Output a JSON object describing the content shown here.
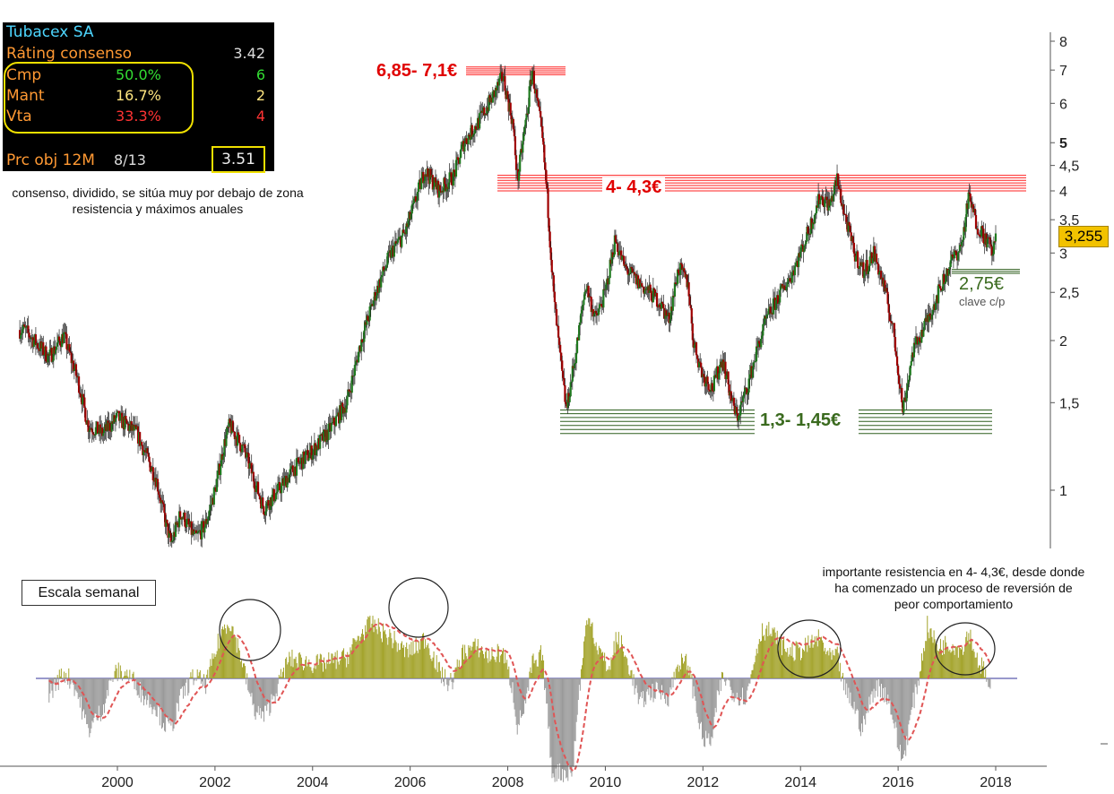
{
  "panel": {
    "title": "Tubacex SA",
    "rating_label": "Ráting consenso",
    "rating_value": "3.42",
    "rows": [
      {
        "label": "Cmp",
        "pct": "50.0%",
        "count": "6",
        "color": "#33dd33"
      },
      {
        "label": "Mant",
        "pct": "16.7%",
        "count": "2",
        "color": "#ffe680"
      },
      {
        "label": "Vta",
        "pct": "33.3%",
        "count": "4",
        "color": "#ff3333"
      }
    ],
    "target_label": "Prc obj 12M",
    "target_date": "8/13",
    "target_value": "3.51"
  },
  "captions": {
    "consensus": "consenso, dividido, se sitúa muy por debajo de zona resistencia y máximos anuales",
    "resistance": "importante resistencia en 4- 4,3€, desde donde ha comenzado un proceso de reversión de peor comportamiento",
    "scale": "Escala semanal"
  },
  "zones": {
    "top": "6,85- 7,1€",
    "mid": "4- 4,3€",
    "low": "1,3- 1,45€",
    "key": "2,75€",
    "key_sub": "clave c/p"
  },
  "last_price": "3,255",
  "chart_data": {
    "type": "candlestick",
    "scale": "log",
    "x_tick_labels": [
      "2000",
      "2002",
      "2004",
      "2006",
      "2008",
      "2010",
      "2012",
      "2014",
      "2016",
      "2018"
    ],
    "y_tick_labels": [
      "8",
      "7",
      "6",
      "5",
      "4,5",
      "4",
      "3,5",
      "3",
      "2,5",
      "2",
      "1,5",
      "1"
    ],
    "y_ticks": [
      8,
      7,
      6,
      5,
      4.5,
      4,
      3.5,
      3,
      2.5,
      2,
      1.5,
      1
    ],
    "ylim": [
      0.72,
      8.2
    ],
    "xlim": [
      1998.0,
      2018.8
    ],
    "price_path": [
      [
        1998.1,
        2.1
      ],
      [
        1998.6,
        1.85
      ],
      [
        1998.9,
        2.05
      ],
      [
        1999.2,
        1.65
      ],
      [
        1999.4,
        1.35
      ],
      [
        1999.7,
        1.3
      ],
      [
        2000.0,
        1.4
      ],
      [
        2000.4,
        1.3
      ],
      [
        2000.8,
        1.05
      ],
      [
        2001.0,
        0.85
      ],
      [
        2001.1,
        0.78
      ],
      [
        2001.3,
        0.9
      ],
      [
        2001.6,
        0.8
      ],
      [
        2001.8,
        0.85
      ],
      [
        2002.0,
        1.0
      ],
      [
        2002.2,
        1.25
      ],
      [
        2002.3,
        1.35
      ],
      [
        2002.6,
        1.2
      ],
      [
        2002.8,
        1.05
      ],
      [
        2003.0,
        0.92
      ],
      [
        2003.3,
        1.0
      ],
      [
        2003.6,
        1.1
      ],
      [
        2004.0,
        1.2
      ],
      [
        2004.3,
        1.3
      ],
      [
        2004.7,
        1.5
      ],
      [
        2005.0,
        2.0
      ],
      [
        2005.3,
        2.5
      ],
      [
        2005.6,
        3.0
      ],
      [
        2005.9,
        3.3
      ],
      [
        2006.1,
        3.8
      ],
      [
        2006.3,
        4.4
      ],
      [
        2006.6,
        4.0
      ],
      [
        2006.9,
        4.3
      ],
      [
        2007.1,
        5.0
      ],
      [
        2007.4,
        5.5
      ],
      [
        2007.7,
        6.2
      ],
      [
        2007.9,
        6.8
      ],
      [
        2008.1,
        5.5
      ],
      [
        2008.2,
        4.2
      ],
      [
        2008.4,
        5.8
      ],
      [
        2008.5,
        7.0
      ],
      [
        2008.7,
        5.2
      ],
      [
        2008.8,
        4.0
      ],
      [
        2008.95,
        2.4
      ],
      [
        2009.1,
        1.75
      ],
      [
        2009.2,
        1.45
      ],
      [
        2009.4,
        1.9
      ],
      [
        2009.6,
        2.6
      ],
      [
        2009.8,
        2.2
      ],
      [
        2010.0,
        2.5
      ],
      [
        2010.2,
        3.2
      ],
      [
        2010.4,
        2.8
      ],
      [
        2010.7,
        2.6
      ],
      [
        2010.9,
        2.5
      ],
      [
        2011.1,
        2.4
      ],
      [
        2011.3,
        2.2
      ],
      [
        2011.5,
        2.8
      ],
      [
        2011.7,
        2.6
      ],
      [
        2011.8,
        2.0
      ],
      [
        2012.0,
        1.7
      ],
      [
        2012.2,
        1.6
      ],
      [
        2012.4,
        1.85
      ],
      [
        2012.6,
        1.5
      ],
      [
        2012.7,
        1.4
      ],
      [
        2012.9,
        1.6
      ],
      [
        2013.1,
        1.9
      ],
      [
        2013.3,
        2.2
      ],
      [
        2013.5,
        2.4
      ],
      [
        2013.8,
        2.7
      ],
      [
        2014.0,
        3.0
      ],
      [
        2014.2,
        3.4
      ],
      [
        2014.4,
        3.9
      ],
      [
        2014.6,
        3.75
      ],
      [
        2014.75,
        4.2
      ],
      [
        2014.9,
        3.6
      ],
      [
        2015.1,
        3.0
      ],
      [
        2015.3,
        2.75
      ],
      [
        2015.5,
        3.0
      ],
      [
        2015.7,
        2.6
      ],
      [
        2015.9,
        2.1
      ],
      [
        2016.0,
        1.75
      ],
      [
        2016.1,
        1.45
      ],
      [
        2016.3,
        1.9
      ],
      [
        2016.6,
        2.2
      ],
      [
        2016.9,
        2.6
      ],
      [
        2017.1,
        2.9
      ],
      [
        2017.3,
        3.1
      ],
      [
        2017.45,
        3.9
      ],
      [
        2017.6,
        3.45
      ],
      [
        2017.8,
        3.2
      ],
      [
        2017.95,
        3.0
      ],
      [
        2018.0,
        3.255
      ]
    ],
    "zones": [
      {
        "label": "6,85- 7,1€",
        "from": 6.85,
        "to": 7.1,
        "color": "#ff0000"
      },
      {
        "label": "4- 4,3€",
        "from": 4.0,
        "to": 4.3,
        "color": "#ff0000"
      },
      {
        "label": "1,3- 1,45€",
        "from": 1.3,
        "to": 1.45,
        "color": "#2e5e1e"
      },
      {
        "label": "2,75€",
        "level": 2.75,
        "color": "#2e5e1e"
      }
    ],
    "oscillator": {
      "bars": "histogram: olive above zero, grey below zero",
      "signal": "dashed red moving average"
    }
  }
}
